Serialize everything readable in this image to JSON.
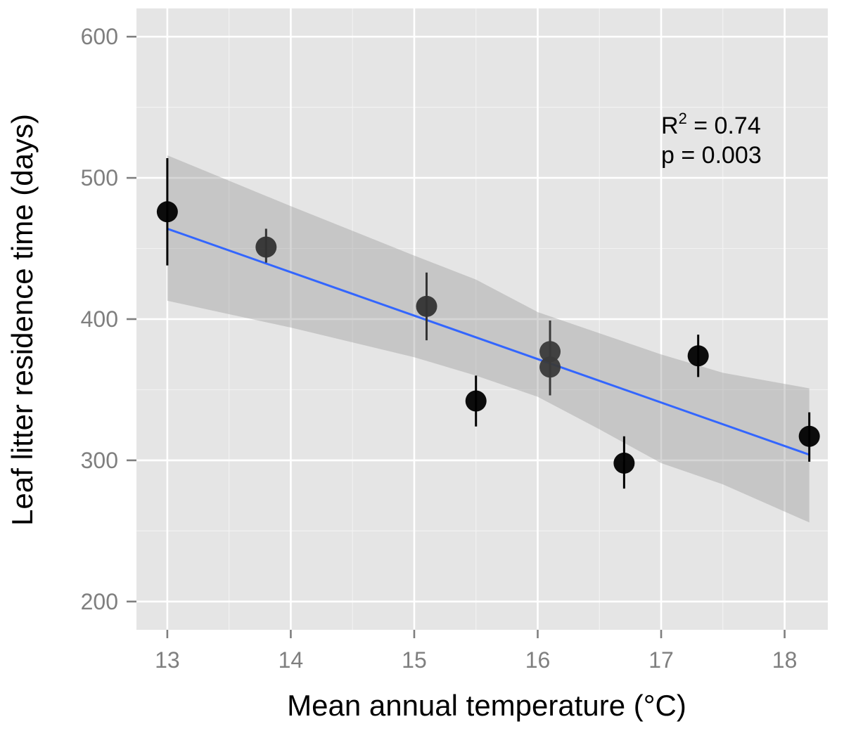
{
  "chart_data": {
    "type": "scatter",
    "xlabel": "Mean annual temperature (°C)",
    "ylabel": "Leaf litter residence time (days)",
    "xlim": [
      12.75,
      18.35
    ],
    "ylim": [
      180,
      620
    ],
    "x_ticks": [
      13,
      14,
      15,
      16,
      17,
      18
    ],
    "y_ticks": [
      200,
      300,
      400,
      500,
      600
    ],
    "x_tick_labels": [
      "13",
      "14",
      "15",
      "16",
      "17",
      "18"
    ],
    "y_tick_labels": [
      "200",
      "300",
      "400",
      "500",
      "600"
    ],
    "grid": true,
    "points": [
      {
        "x": 13.0,
        "y": 476,
        "ymin": 438,
        "ymax": 514,
        "shade": "#000000"
      },
      {
        "x": 13.8,
        "y": 451,
        "ymin": 440,
        "ymax": 464,
        "shade": "#333333"
      },
      {
        "x": 15.1,
        "y": 409,
        "ymin": 385,
        "ymax": 433,
        "shade": "#333333"
      },
      {
        "x": 15.5,
        "y": 342,
        "ymin": 324,
        "ymax": 360,
        "shade": "#000000"
      },
      {
        "x": 16.1,
        "y": 377,
        "ymin": 360,
        "ymax": 399,
        "shade": "#3a3a3a"
      },
      {
        "x": 16.1,
        "y": 366,
        "ymin": 346,
        "ymax": 385,
        "shade": "#3a3a3a"
      },
      {
        "x": 16.7,
        "y": 298,
        "ymin": 280,
        "ymax": 317,
        "shade": "#000000"
      },
      {
        "x": 17.3,
        "y": 374,
        "ymin": 359,
        "ymax": 389,
        "shade": "#000000"
      },
      {
        "x": 18.2,
        "y": 317,
        "ymin": 299,
        "ymax": 334,
        "shade": "#000000"
      }
    ],
    "fit": {
      "x": [
        13.0,
        18.2
      ],
      "y": [
        464,
        304
      ],
      "color": "#3366ff",
      "ci_upper": [
        [
          13.0,
          516
        ],
        [
          14.0,
          480
        ],
        [
          15.0,
          445
        ],
        [
          15.5,
          428
        ],
        [
          16.0,
          405
        ],
        [
          16.5,
          390
        ],
        [
          17.0,
          375
        ],
        [
          17.5,
          362
        ],
        [
          18.2,
          351
        ]
      ],
      "ci_lower": [
        [
          13.0,
          413
        ],
        [
          14.0,
          394
        ],
        [
          15.0,
          373
        ],
        [
          15.5,
          360
        ],
        [
          16.0,
          345
        ],
        [
          16.5,
          322
        ],
        [
          17.0,
          298
        ],
        [
          17.5,
          283
        ],
        [
          18.2,
          256
        ]
      ]
    },
    "annotations": {
      "r2_prefix": "R",
      "r2_sup": "2",
      "r2_value": " = 0.74",
      "p_text": "p = 0.003"
    },
    "colors": {
      "panel": "#e5e5e5",
      "grid_major": "#ffffff",
      "grid_minor": "#f2f2f2",
      "ribbon": "#999999",
      "tick": "#7f7f7f"
    }
  }
}
